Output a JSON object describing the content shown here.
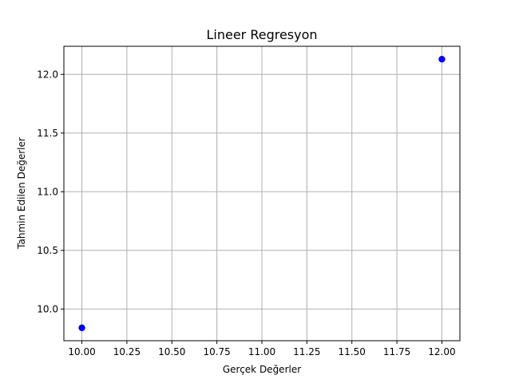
{
  "chart_data": {
    "type": "scatter",
    "title": "Lineer Regresyon",
    "xlabel": "Gerçek Değerler",
    "ylabel": "Tahmin Edilen Değerler",
    "xlim": [
      9.9,
      12.1
    ],
    "ylim": [
      9.73,
      12.24
    ],
    "xticks": [
      10.0,
      10.25,
      10.5,
      10.75,
      11.0,
      11.25,
      11.5,
      11.75,
      12.0
    ],
    "xtick_labels": [
      "10.00",
      "10.25",
      "10.50",
      "10.75",
      "11.00",
      "11.25",
      "11.50",
      "11.75",
      "12.00"
    ],
    "yticks": [
      10.0,
      10.5,
      11.0,
      11.5,
      12.0
    ],
    "ytick_labels": [
      "10.0",
      "10.5",
      "11.0",
      "11.5",
      "12.0"
    ],
    "grid": true,
    "point_color": "#0000ff",
    "points": [
      {
        "x": 10.0,
        "y": 9.84
      },
      {
        "x": 12.0,
        "y": 12.13
      }
    ]
  }
}
